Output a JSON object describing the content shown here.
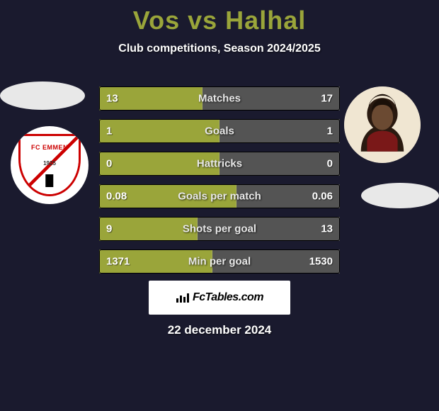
{
  "title": "Vos vs Halhal",
  "subtitle": "Club competitions, Season 2024/2025",
  "date": "22 december 2024",
  "watermark": "FcTables.com",
  "colors": {
    "accent": "#9aa53a",
    "right_bar": "#545454",
    "background": "#1a1a2e",
    "text": "#ffffff",
    "blob": "#e8e8e8"
  },
  "left_badge": {
    "name": "FC EMMEN",
    "year": "1925"
  },
  "rows": [
    {
      "label": "Matches",
      "left": "13",
      "right": "17",
      "left_pct": 43
    },
    {
      "label": "Goals",
      "left": "1",
      "right": "1",
      "left_pct": 50
    },
    {
      "label": "Hattricks",
      "left": "0",
      "right": "0",
      "left_pct": 50
    },
    {
      "label": "Goals per match",
      "left": "0.08",
      "right": "0.06",
      "left_pct": 57
    },
    {
      "label": "Shots per goal",
      "left": "9",
      "right": "13",
      "left_pct": 41
    },
    {
      "label": "Min per goal",
      "left": "1371",
      "right": "1530",
      "left_pct": 47
    }
  ]
}
